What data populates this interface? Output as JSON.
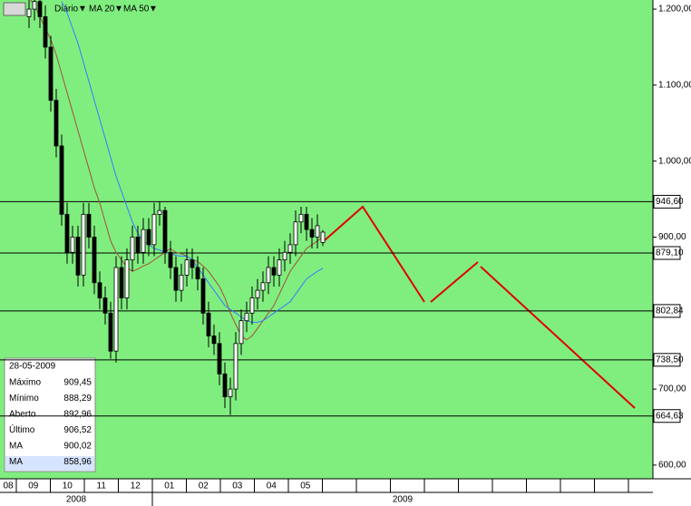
{
  "chart_data": {
    "type": "candlestick",
    "interval": "Diário",
    "open": [
      1190,
      1200,
      1210,
      1190,
      1150,
      1080,
      1020,
      930,
      880,
      900,
      850,
      930,
      900,
      840,
      820,
      800,
      750,
      860,
      820,
      870,
      900,
      880,
      910,
      890,
      930,
      935,
      880,
      860,
      830,
      850,
      870,
      860,
      845,
      800,
      770,
      760,
      720,
      690,
      700,
      760,
      790,
      800,
      820,
      830,
      840,
      860,
      850,
      870,
      880,
      890,
      920,
      930,
      910,
      900,
      892.96
    ],
    "high": [
      1215,
      1225,
      1225,
      1205,
      1165,
      1095,
      1035,
      945,
      915,
      915,
      945,
      945,
      915,
      855,
      835,
      815,
      875,
      875,
      885,
      915,
      915,
      925,
      925,
      945,
      946.6,
      940,
      895,
      875,
      865,
      885,
      885,
      875,
      860,
      815,
      785,
      775,
      735,
      715,
      775,
      805,
      815,
      835,
      845,
      855,
      875,
      875,
      885,
      895,
      905,
      935,
      940,
      940,
      925,
      930,
      909.45
    ],
    "low": [
      1175,
      1185,
      1175,
      1135,
      1065,
      1005,
      915,
      865,
      865,
      835,
      835,
      885,
      825,
      805,
      785,
      740,
      735,
      805,
      805,
      855,
      865,
      865,
      875,
      875,
      915,
      865,
      845,
      815,
      815,
      835,
      845,
      830,
      785,
      755,
      745,
      705,
      675,
      666,
      685,
      745,
      775,
      785,
      805,
      815,
      825,
      835,
      835,
      855,
      865,
      875,
      905,
      895,
      885,
      885,
      888.29
    ],
    "close": [
      1200,
      1210,
      1190,
      1150,
      1080,
      1020,
      930,
      880,
      900,
      850,
      930,
      900,
      840,
      820,
      800,
      750,
      860,
      820,
      870,
      900,
      880,
      910,
      890,
      930,
      935,
      880,
      860,
      830,
      850,
      870,
      860,
      845,
      800,
      770,
      760,
      720,
      690,
      700,
      760,
      790,
      800,
      820,
      830,
      840,
      860,
      850,
      870,
      880,
      890,
      920,
      930,
      910,
      900,
      915,
      906.52
    ],
    "series": [
      {
        "name": "MA 20",
        "color": "#a0503c",
        "values": [
          1215,
          1205,
          1190,
          1175,
          1160,
          1140,
          1115,
          1090,
          1065,
          1040,
          1015,
          990,
          965,
          945,
          920,
          895,
          880,
          870,
          860,
          855,
          858,
          862,
          865,
          870,
          875,
          880,
          885,
          880,
          878,
          875,
          870,
          868,
          862,
          855,
          845,
          835,
          820,
          800,
          785,
          770,
          765,
          770,
          780,
          790,
          800,
          810,
          825,
          840,
          855,
          865,
          875,
          885,
          890,
          895,
          900.02
        ]
      },
      {
        "name": "MA 50",
        "color": "#3a78ff",
        "values": [
          null,
          null,
          null,
          null,
          null,
          null,
          1210,
          1195,
          1175,
          1155,
          1130,
          1105,
          1080,
          1055,
          1030,
          1005,
          980,
          960,
          940,
          920,
          905,
          895,
          890,
          885,
          883,
          880,
          878,
          876,
          875,
          875,
          870,
          860,
          850,
          840,
          830,
          820,
          810,
          805,
          800,
          795,
          790,
          788,
          788,
          790,
          795,
          800,
          805,
          810,
          815,
          825,
          835,
          845,
          850,
          855,
          858.96
        ]
      }
    ],
    "ylim": [
      582,
      1212
    ],
    "yticks": [
      {
        "value": 1200,
        "label": "1.200,00"
      },
      {
        "value": 1100,
        "label": "1.100,00"
      },
      {
        "value": 1000,
        "label": "1.000,00"
      },
      {
        "value": 900,
        "label": "900,00"
      },
      {
        "value": 700,
        "label": "700,00"
      },
      {
        "value": 600,
        "label": "600,00"
      }
    ],
    "levels": [
      {
        "value": 946.6,
        "label": "946,60"
      },
      {
        "value": 879.1,
        "label": "879,10"
      },
      {
        "value": 802.84,
        "label": "802,84"
      },
      {
        "value": 738.5,
        "label": "738,50"
      },
      {
        "value": 664.63,
        "label": "664,63"
      }
    ],
    "months": [
      "08",
      "09",
      "10",
      "11",
      "12",
      "01",
      "02",
      "03",
      "04",
      "05",
      null,
      null,
      null,
      null,
      null,
      null,
      null,
      null,
      null,
      null
    ],
    "years": [
      "2008",
      "2009"
    ],
    "info": {
      "date": "28-05-2009",
      "rows": [
        [
          "Máximo",
          "909,45"
        ],
        [
          "Mínimo",
          "888,29"
        ],
        [
          "Aberto",
          "892,96"
        ],
        [
          "Último",
          "906,52"
        ],
        [
          "MA",
          "900,02"
        ],
        [
          "MA",
          "858,96"
        ]
      ]
    }
  }
}
